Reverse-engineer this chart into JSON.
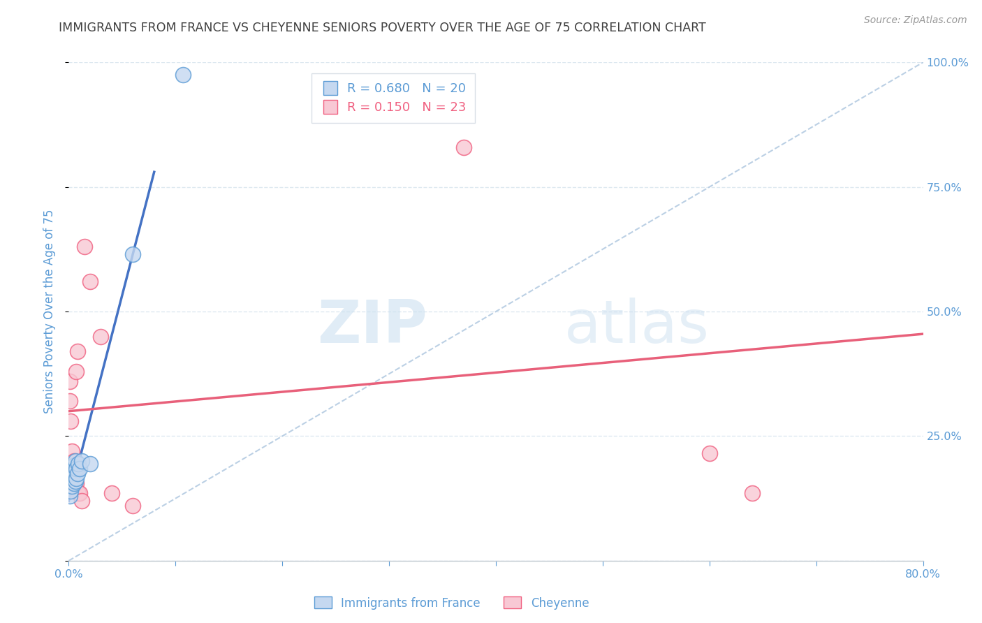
{
  "title": "IMMIGRANTS FROM FRANCE VS CHEYENNE SENIORS POVERTY OVER THE AGE OF 75 CORRELATION CHART",
  "source": "Source: ZipAtlas.com",
  "ylabel": "Seniors Poverty Over the Age of 75",
  "xlim": [
    0.0,
    0.8
  ],
  "ylim": [
    0.0,
    1.0
  ],
  "xticks": [
    0.0,
    0.1,
    0.2,
    0.3,
    0.4,
    0.5,
    0.6,
    0.7,
    0.8
  ],
  "xtick_labels": [
    "0.0%",
    "",
    "",
    "",
    "",
    "",
    "",
    "",
    "80.0%"
  ],
  "yticks": [
    0.0,
    0.25,
    0.5,
    0.75,
    1.0
  ],
  "ytick_labels": [
    "",
    "25.0%",
    "50.0%",
    "75.0%",
    "100.0%"
  ],
  "blue_R": 0.68,
  "blue_N": 20,
  "pink_R": 0.15,
  "pink_N": 23,
  "blue_fill_color": "#c5d8f0",
  "pink_fill_color": "#f8c8d4",
  "blue_edge_color": "#5b9bd5",
  "pink_edge_color": "#f06080",
  "blue_line_color": "#4472c4",
  "pink_line_color": "#e8607a",
  "legend_label_blue": "Immigrants from France",
  "legend_label_pink": "Cheyenne",
  "watermark_zip": "ZIP",
  "watermark_atlas": "atlas",
  "blue_scatter_x": [
    0.001,
    0.002,
    0.002,
    0.003,
    0.003,
    0.004,
    0.004,
    0.005,
    0.005,
    0.006,
    0.006,
    0.007,
    0.007,
    0.008,
    0.009,
    0.01,
    0.012,
    0.02,
    0.06,
    0.107
  ],
  "blue_scatter_y": [
    0.13,
    0.14,
    0.16,
    0.15,
    0.18,
    0.17,
    0.19,
    0.155,
    0.175,
    0.16,
    0.2,
    0.165,
    0.185,
    0.175,
    0.195,
    0.185,
    0.2,
    0.195,
    0.615,
    0.975
  ],
  "pink_scatter_x": [
    0.001,
    0.001,
    0.002,
    0.003,
    0.003,
    0.004,
    0.005,
    0.005,
    0.006,
    0.007,
    0.007,
    0.008,
    0.009,
    0.01,
    0.012,
    0.015,
    0.02,
    0.03,
    0.04,
    0.06,
    0.6,
    0.64,
    0.37
  ],
  "pink_scatter_y": [
    0.32,
    0.36,
    0.28,
    0.22,
    0.155,
    0.175,
    0.155,
    0.2,
    0.18,
    0.155,
    0.38,
    0.42,
    0.135,
    0.135,
    0.12,
    0.63,
    0.56,
    0.45,
    0.135,
    0.11,
    0.215,
    0.135,
    0.83
  ],
  "blue_line_x": [
    0.0,
    0.08
  ],
  "blue_line_y": [
    0.12,
    0.78
  ],
  "pink_line_x": [
    0.0,
    0.8
  ],
  "pink_line_y": [
    0.3,
    0.455
  ],
  "diag_line_x": [
    0.0,
    0.8
  ],
  "diag_line_y": [
    0.0,
    1.0
  ],
  "bg_color": "#ffffff",
  "grid_color": "#dde8f0",
  "grid_style": "--",
  "axis_label_color": "#5b9bd5",
  "title_color": "#404040"
}
